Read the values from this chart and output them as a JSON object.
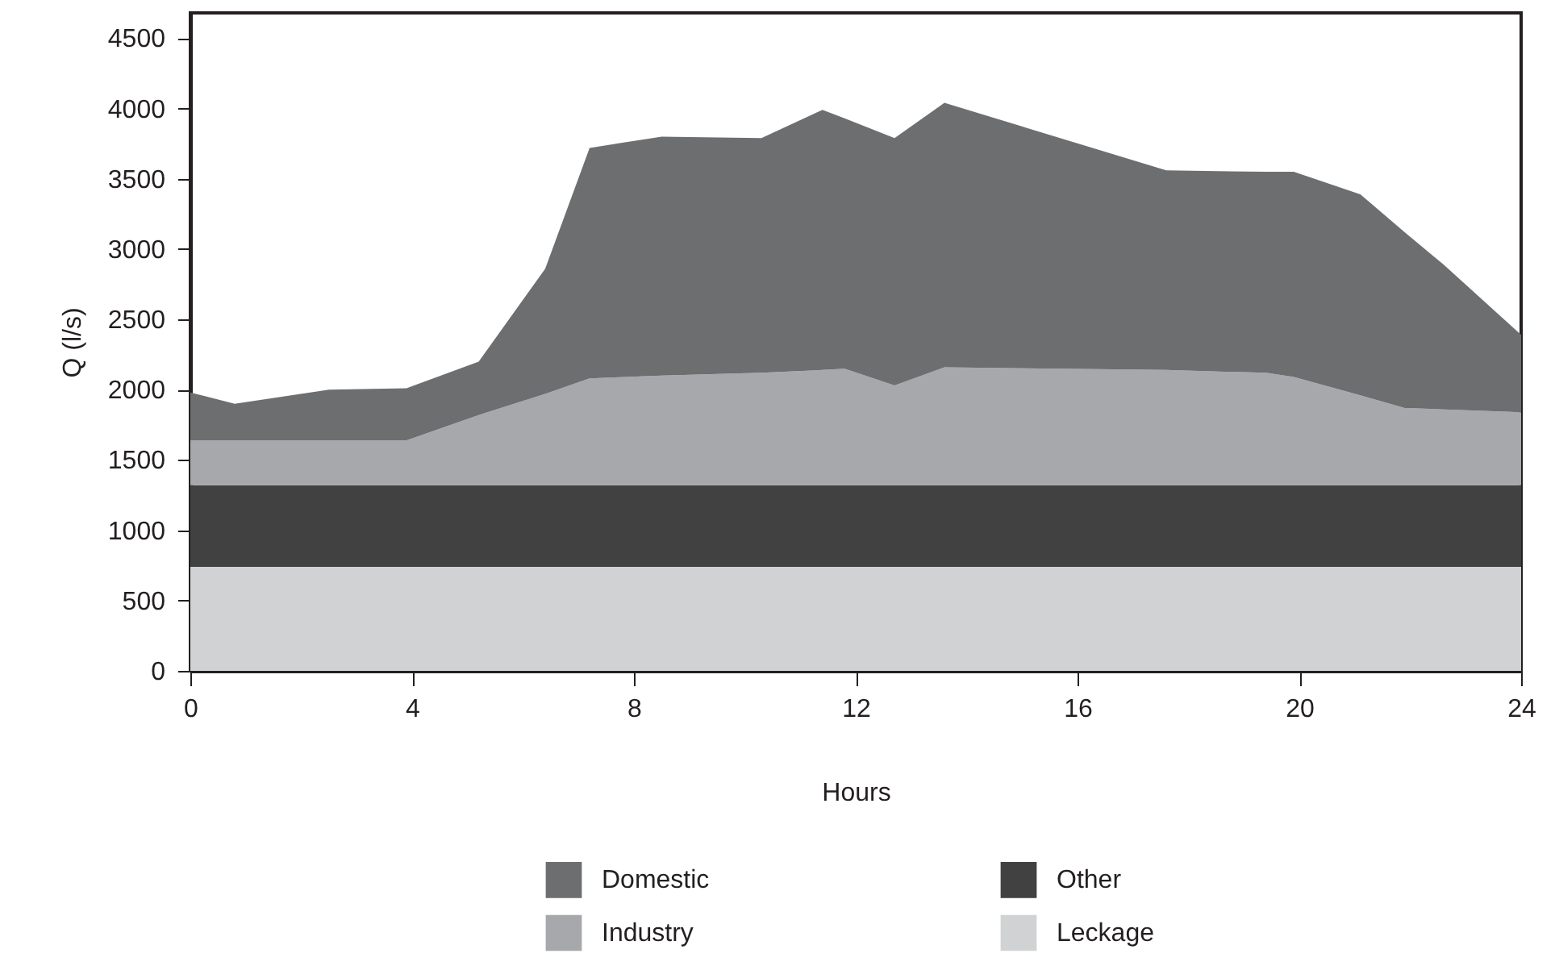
{
  "chart_data": {
    "type": "area",
    "stacked": true,
    "xlabel": "Hours",
    "ylabel": "Q (l/s)",
    "x": [
      0,
      0.8,
      2.5,
      3.9,
      5.2,
      6.4,
      7.2,
      8.5,
      10.3,
      11.4,
      11.8,
      12.7,
      13.6,
      17.6,
      19.4,
      19.9,
      21.1,
      21.9,
      22.6,
      24
    ],
    "series": [
      {
        "name": "Leckage",
        "color": "#d1d2d4",
        "values": [
          740,
          740,
          740,
          740,
          740,
          740,
          740,
          740,
          740,
          740,
          740,
          740,
          740,
          740,
          740,
          740,
          740,
          740,
          740,
          740
        ]
      },
      {
        "name": "Other",
        "color": "#414141",
        "values": [
          580,
          580,
          580,
          580,
          580,
          580,
          580,
          580,
          580,
          580,
          580,
          580,
          580,
          580,
          580,
          580,
          580,
          580,
          580,
          580
        ]
      },
      {
        "name": "Industry",
        "color": "#a7a8ab",
        "values": [
          320,
          320,
          320,
          320,
          500,
          650,
          760,
          780,
          800,
          820,
          830,
          710,
          840,
          820,
          800,
          770,
          640,
          550,
          540,
          520
        ]
      },
      {
        "name": "Domestic",
        "color": "#6d6e70",
        "values": [
          340,
          260,
          360,
          370,
          380,
          890,
          1640,
          1700,
          1670,
          1850,
          1780,
          1760,
          1880,
          1420,
          1430,
          1460,
          1430,
          1250,
          1030,
          550
        ]
      }
    ],
    "xlim": [
      0,
      24
    ],
    "xticks": [
      0,
      4,
      8,
      12,
      16,
      20,
      24
    ],
    "ylim": [
      0,
      4680
    ],
    "yticks": [
      0,
      500,
      1000,
      1500,
      2000,
      2500,
      3000,
      3500,
      4000,
      4500
    ],
    "grid": false,
    "legend": "bottom"
  }
}
